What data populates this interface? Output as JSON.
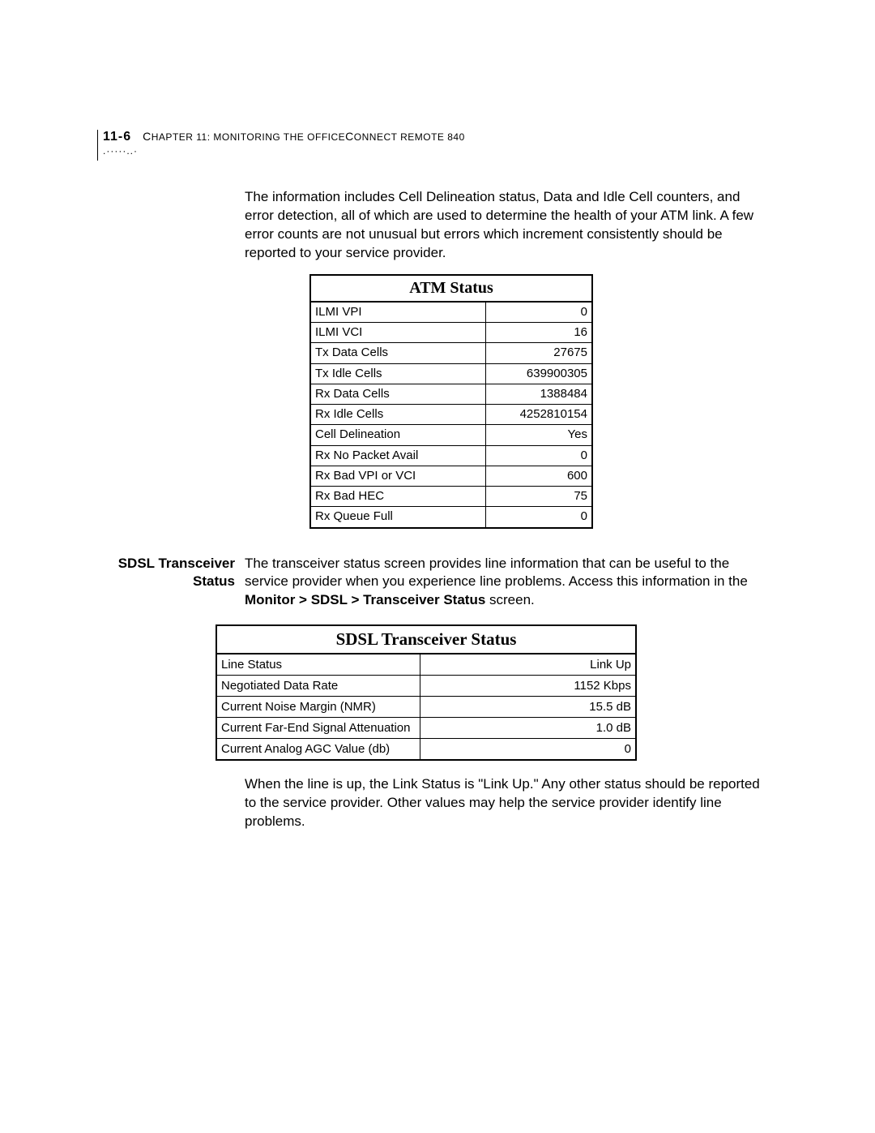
{
  "header": {
    "page_number": "11-6",
    "chapter_prefix": "C",
    "chapter_text": "HAPTER 11: M",
    "chapter_text2": "ONITORING THE O",
    "chapter_text3": "FFICE",
    "chapter_text4": "C",
    "chapter_text5": "ONNECT R",
    "chapter_text6": "EMOTE 840",
    "dots_pattern": ".·····..·"
  },
  "para1": "The information includes Cell Delineation status, Data and Idle Cell counters, and error detection, all of which are used to determine the health of your ATM link. A few error counts are not unusual but errors which increment consistently should be reported to your service provider.",
  "atm_table": {
    "title": "ATM Status",
    "rows": [
      {
        "label": "ILMI VPI",
        "value": "0"
      },
      {
        "label": "ILMI VCI",
        "value": "16"
      },
      {
        "label": "Tx Data Cells",
        "value": "27675"
      },
      {
        "label": "Tx Idle Cells",
        "value": "639900305"
      },
      {
        "label": "Rx Data Cells",
        "value": "1388484"
      },
      {
        "label": "Rx Idle Cells",
        "value": "4252810154"
      },
      {
        "label": "Cell Delineation",
        "value": "Yes"
      },
      {
        "label": "Rx No Packet Avail",
        "value": "0"
      },
      {
        "label": "Rx Bad VPI or VCI",
        "value": "600"
      },
      {
        "label": "Rx Bad HEC",
        "value": "75"
      },
      {
        "label": "Rx Queue Full",
        "value": "0"
      }
    ]
  },
  "section_label": "SDSL Transceiver Status",
  "para2_a": "The transceiver status screen provides line information that can be useful to the service provider when you experience line problems. Access this information in the ",
  "para2_b": "Monitor > SDSL > Transceiver Status",
  "para2_c": " screen.",
  "sdsl_table": {
    "title": "SDSL Transceiver Status",
    "rows": [
      {
        "label": "Line Status",
        "value": "Link Up"
      },
      {
        "label": "Negotiated Data Rate",
        "value": "1152 Kbps"
      },
      {
        "label": "Current Noise Margin (NMR)",
        "value": "15.5 dB"
      },
      {
        "label": "Current Far-End Signal Attenuation",
        "value": "1.0 dB"
      },
      {
        "label": "Current Analog AGC Value (db)",
        "value": "0"
      }
    ]
  },
  "para3": "When the line is up, the Link Status is \"Link Up.\" Any other status should be reported to the service provider. Other values may help the service provider identify line problems."
}
